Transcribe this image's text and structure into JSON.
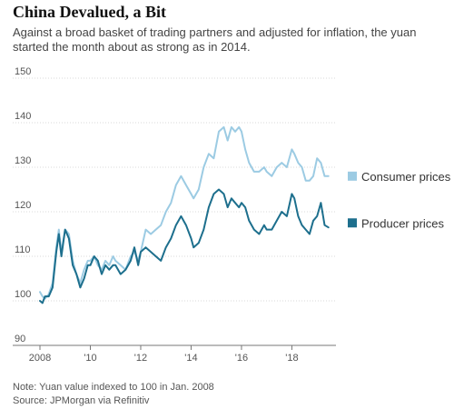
{
  "chart_data": {
    "type": "line",
    "title": "China Devalued, a Bit",
    "subtitle": "Against a broad basket of trading partners and adjusted for inflation, the yuan started the month about as strong as in 2014.",
    "xlabel": "",
    "ylabel": "",
    "xlim": [
      2008.0,
      2019.75
    ],
    "ylim": [
      90,
      150
    ],
    "yticks": [
      90,
      100,
      110,
      120,
      130,
      140,
      150
    ],
    "xticks": [
      2008,
      2010,
      2012,
      2014,
      2016,
      2018
    ],
    "xtick_labels": [
      "2008",
      "'10",
      "'12",
      "'14",
      "'16",
      "'18"
    ],
    "grid": "horizontal",
    "legend_placement": "right",
    "series": [
      {
        "name": "Consumer prices",
        "color": "#9ccbe3",
        "x": [
          2008.0,
          2008.1,
          2008.2,
          2008.35,
          2008.5,
          2008.65,
          2008.75,
          2008.85,
          2009.0,
          2009.15,
          2009.3,
          2009.45,
          2009.6,
          2009.75,
          2009.9,
          2010.0,
          2010.15,
          2010.3,
          2010.45,
          2010.6,
          2010.75,
          2010.9,
          2011.0,
          2011.2,
          2011.4,
          2011.6,
          2011.75,
          2011.9,
          2012.0,
          2012.2,
          2012.4,
          2012.6,
          2012.8,
          2013.0,
          2013.2,
          2013.4,
          2013.6,
          2013.8,
          2014.0,
          2014.1,
          2014.3,
          2014.5,
          2014.7,
          2014.9,
          2015.1,
          2015.3,
          2015.45,
          2015.6,
          2015.75,
          2015.9,
          2016.0,
          2016.15,
          2016.3,
          2016.5,
          2016.7,
          2016.9,
          2017.0,
          2017.2,
          2017.4,
          2017.6,
          2017.8,
          2018.0,
          2018.1,
          2018.25,
          2018.4,
          2018.55,
          2018.7,
          2018.85,
          2019.0,
          2019.15,
          2019.3,
          2019.45
        ],
        "values": [
          102,
          101,
          100.5,
          101.5,
          104,
          112,
          116,
          111,
          116,
          115,
          109,
          106,
          104,
          107,
          109,
          109,
          110,
          108,
          107,
          109,
          108,
          110,
          109,
          108,
          107,
          110,
          111,
          109,
          111,
          116,
          115,
          116,
          117,
          120,
          122,
          126,
          128,
          126,
          124,
          123,
          125,
          130,
          133,
          132,
          138,
          139,
          136,
          139,
          138,
          139,
          138,
          134,
          131,
          129,
          129,
          130,
          129,
          128,
          130,
          131,
          130,
          134,
          133,
          131,
          130,
          127,
          127,
          128,
          132,
          131,
          128,
          128
        ]
      },
      {
        "name": "Producer prices",
        "color": "#1d6f8d",
        "x": [
          2008.0,
          2008.1,
          2008.2,
          2008.35,
          2008.5,
          2008.65,
          2008.75,
          2008.85,
          2009.0,
          2009.15,
          2009.3,
          2009.45,
          2009.6,
          2009.75,
          2009.9,
          2010.0,
          2010.15,
          2010.3,
          2010.45,
          2010.6,
          2010.75,
          2010.9,
          2011.0,
          2011.2,
          2011.4,
          2011.6,
          2011.75,
          2011.9,
          2012.0,
          2012.2,
          2012.4,
          2012.6,
          2012.8,
          2013.0,
          2013.2,
          2013.4,
          2013.6,
          2013.8,
          2014.0,
          2014.1,
          2014.3,
          2014.5,
          2014.7,
          2014.9,
          2015.1,
          2015.3,
          2015.45,
          2015.6,
          2015.75,
          2015.9,
          2016.0,
          2016.15,
          2016.3,
          2016.5,
          2016.7,
          2016.9,
          2017.0,
          2017.2,
          2017.4,
          2017.6,
          2017.8,
          2018.0,
          2018.1,
          2018.25,
          2018.4,
          2018.55,
          2018.7,
          2018.85,
          2019.0,
          2019.15,
          2019.3,
          2019.45
        ],
        "values": [
          100,
          99.5,
          101,
          101,
          103,
          111,
          115,
          110,
          116,
          114,
          108,
          106,
          103,
          105,
          108,
          108,
          110,
          109,
          106,
          108,
          107,
          108,
          108,
          106,
          107,
          109,
          112,
          108,
          111,
          112,
          111,
          110,
          109,
          112,
          114,
          117,
          119,
          117,
          114,
          112,
          113,
          116,
          121,
          124,
          125,
          124,
          121,
          123,
          122,
          121,
          122,
          121,
          118,
          116,
          115,
          117,
          116,
          116,
          118,
          120,
          119,
          124,
          123,
          119,
          117,
          116,
          115,
          118,
          119,
          122,
          117,
          116.5
        ]
      }
    ]
  },
  "notes": {
    "note": "Note: Yuan value indexed to 100 in Jan. 2008",
    "source": "Source: JPMorgan via Refinitiv"
  }
}
